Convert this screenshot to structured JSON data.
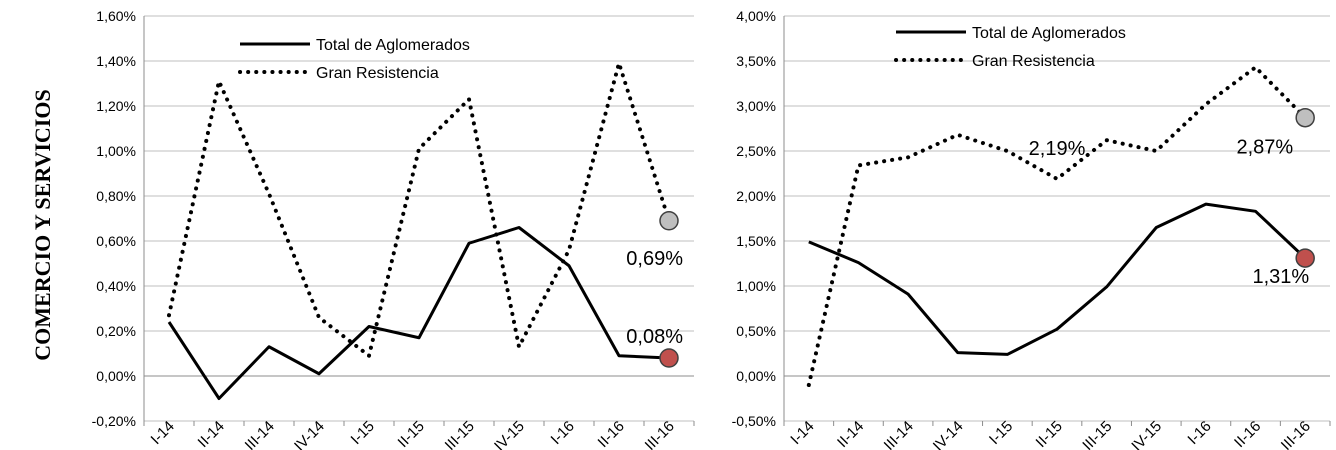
{
  "side_title": "COMERCIO Y SERVICIOS",
  "colors": {
    "marker_gray": "#bfbfbf",
    "marker_red": "#c0504d",
    "line": "#000000",
    "grid": "#bfbfbf"
  },
  "chart_data": [
    {
      "type": "line",
      "categories": [
        "I-14",
        "II-14",
        "III-14",
        "IV-14",
        "I-15",
        "II-15",
        "III-15",
        "IV-15",
        "I-16",
        "II-16",
        "III-16"
      ],
      "ylim": [
        -0.2,
        1.6
      ],
      "yticks": [
        "1,60%",
        "1,40%",
        "1,20%",
        "1,00%",
        "0,80%",
        "0,60%",
        "0,40%",
        "0,20%",
        "0,00%",
        "-0,20%"
      ],
      "ytick_values": [
        1.6,
        1.4,
        1.2,
        1.0,
        0.8,
        0.6,
        0.4,
        0.2,
        0.0,
        -0.2
      ],
      "grid": true,
      "legend_position": "top-center",
      "series": [
        {
          "name": "Total de Aglomerados",
          "style": "solid",
          "values": [
            0.24,
            -0.1,
            0.13,
            0.01,
            0.22,
            0.17,
            0.59,
            0.66,
            0.49,
            0.09,
            0.08
          ],
          "end_label": "0,08%",
          "end_marker_color": "#c0504d"
        },
        {
          "name": "Gran Resistencia",
          "style": "dotted",
          "values": [
            0.27,
            1.31,
            0.81,
            0.26,
            0.09,
            1.01,
            1.23,
            0.13,
            0.56,
            1.39,
            0.69
          ],
          "end_label": "0,69%",
          "end_marker_color": "#bfbfbf"
        }
      ],
      "annotations": [
        {
          "text": "0,08%",
          "series": 0
        },
        {
          "text": "0,69%",
          "series": 1
        }
      ]
    },
    {
      "type": "line",
      "categories": [
        "I-14",
        "II-14",
        "III-14",
        "IV-14",
        "I-15",
        "II-15",
        "III-15",
        "IV-15",
        "I-16",
        "II-16",
        "III-16"
      ],
      "ylim": [
        -0.5,
        4.0
      ],
      "yticks": [
        "4,00%",
        "3,50%",
        "3,00%",
        "2,50%",
        "2,00%",
        "1,50%",
        "1,00%",
        "0,50%",
        "0,00%",
        "-0,50%"
      ],
      "ytick_values": [
        4.0,
        3.5,
        3.0,
        2.5,
        2.0,
        1.5,
        1.0,
        0.5,
        0.0,
        -0.5
      ],
      "grid": true,
      "legend_position": "top-center",
      "series": [
        {
          "name": "Total de Aglomerados",
          "style": "solid",
          "values": [
            1.49,
            1.26,
            0.91,
            0.26,
            0.24,
            0.52,
            0.99,
            1.65,
            1.91,
            1.83,
            1.31
          ],
          "end_label": "1,31%",
          "end_marker_color": "#c0504d"
        },
        {
          "name": "Gran Resistencia",
          "style": "dotted",
          "values": [
            -0.1,
            2.34,
            2.43,
            2.68,
            2.5,
            2.19,
            2.62,
            2.5,
            3.02,
            3.43,
            2.87
          ],
          "end_label": "2,87%",
          "end_marker_color": "#bfbfbf"
        }
      ],
      "annotations": [
        {
          "text": "2,19%",
          "series": 1,
          "index": 5
        },
        {
          "text": "2,87%",
          "series": 1,
          "index": 10
        },
        {
          "text": "1,31%",
          "series": 0,
          "index": 10
        }
      ]
    }
  ]
}
